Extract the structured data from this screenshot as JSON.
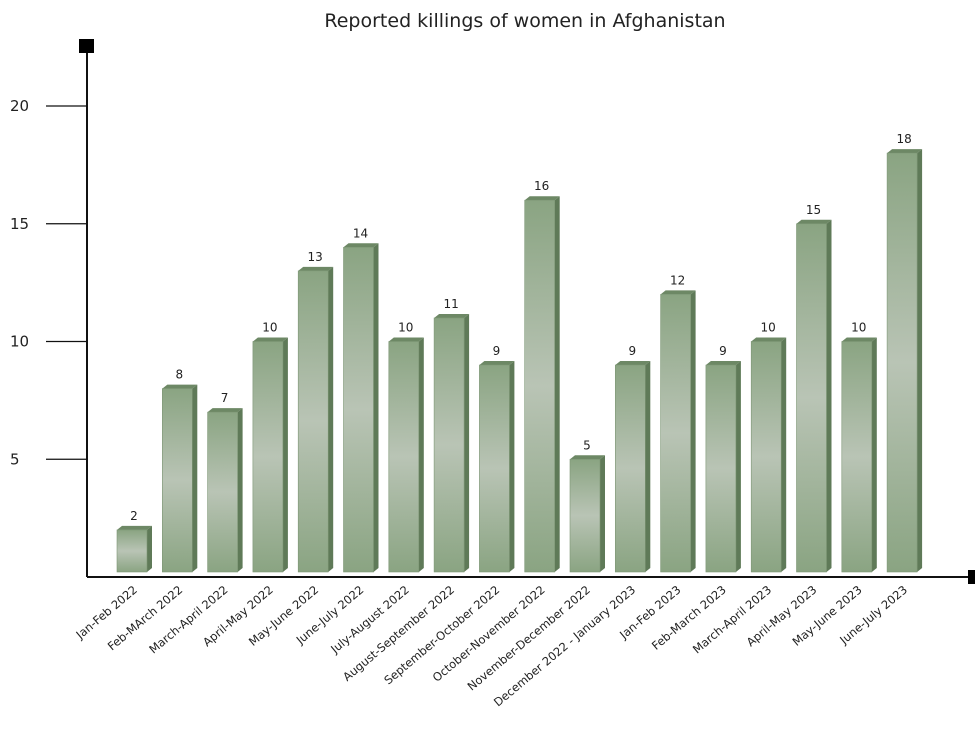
{
  "chart_data": {
    "type": "bar",
    "title": "Reported killings of women in Afghanistan",
    "xlabel": "",
    "ylabel": "",
    "ylim": [
      0,
      20
    ],
    "yticks": [
      5,
      10,
      15,
      20
    ],
    "grid": false,
    "categories": [
      "Jan-Feb 2022",
      "Feb-MArch 2022",
      "March-April 2022",
      "April-May 2022",
      "May-June 2022",
      "June-July 2022",
      "July-August 2022",
      "August-September 2022",
      "September-October 2022",
      "October-November 2022",
      "November-December 2022",
      "December 2022 - January 2023",
      "Jan-Feb 2023",
      "Feb-March 2023",
      "March-April 2023",
      "April-May 2023",
      "May-June 2023",
      "June-July 2023"
    ],
    "values": [
      2,
      8,
      7,
      10,
      13,
      14,
      10,
      11,
      9,
      16,
      5,
      9,
      12,
      9,
      10,
      15,
      10,
      18
    ],
    "bar_color": "#8fa887",
    "axis_color": "#111111"
  }
}
